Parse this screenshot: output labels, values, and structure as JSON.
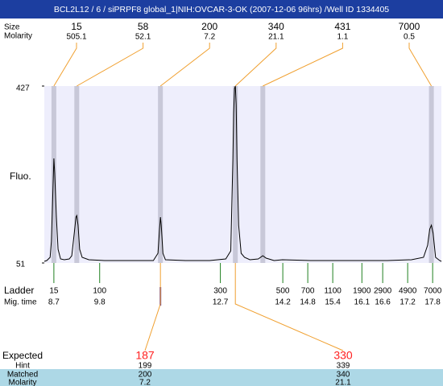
{
  "chart_data": {
    "type": "line",
    "title": "BCL2L12 / 6 / siPRPF8 global_1|NIH:OVCAR-3-OK (2007-12-06 96hrs) /Well ID 1334405",
    "y_label": "Fluo.",
    "color": "#000000",
    "xlim": [
      8.47,
      18.01
    ],
    "ylim": [
      51,
      427
    ],
    "yticks": [
      51,
      427
    ],
    "x": [
      8.47,
      8.53,
      8.61,
      8.64,
      8.68,
      8.7,
      8.72,
      8.76,
      8.8,
      8.86,
      8.95,
      9.07,
      9.13,
      9.19,
      9.23,
      9.25,
      9.28,
      9.32,
      9.38,
      9.54,
      9.92,
      10.5,
      11.09,
      11.2,
      11.24,
      11.26,
      11.28,
      11.32,
      11.38,
      11.86,
      12.44,
      12.83,
      12.95,
      13.0,
      13.02,
      13.04,
      13.06,
      13.08,
      13.1,
      13.14,
      13.2,
      13.28,
      13.41,
      13.61,
      13.72,
      13.8,
      13.99,
      14.19,
      14.87,
      15.54,
      16.71,
      17.29,
      17.58,
      17.68,
      17.73,
      17.77,
      17.81,
      17.87,
      17.97,
      18.01
    ],
    "values": [
      54.4,
      56.1,
      63.0,
      97.1,
      216.8,
      273.2,
      242.4,
      148.4,
      80.1,
      59.5,
      57.8,
      59.5,
      66.4,
      114.2,
      148.4,
      151.8,
      131.3,
      80.1,
      63.0,
      57.8,
      56.1,
      56.1,
      56.1,
      71.5,
      122.8,
      148.4,
      131.3,
      71.5,
      57.8,
      56.1,
      56.1,
      59.5,
      76.6,
      268.0,
      370.6,
      421.9,
      427,
      387.7,
      268.0,
      131.3,
      71.5,
      63.0,
      57.8,
      59.5,
      66.4,
      61.3,
      56.1,
      57.8,
      56.1,
      56.1,
      56.1,
      57.8,
      63.0,
      88.6,
      122.8,
      131.3,
      114.2,
      63.0,
      56.1,
      54.4
    ],
    "peaks": {
      "size_label": "Size",
      "molarity_label": "Molarity",
      "size": [
        15,
        58,
        200,
        340,
        431,
        7000
      ],
      "molarity": [
        505.1,
        52.1,
        7.2,
        21.1,
        1.1,
        0.5
      ],
      "time": [
        8.7,
        9.25,
        11.26,
        13.06,
        13.72,
        17.77
      ],
      "band_color": "#c8c8d8",
      "line_color": "#f0a030"
    },
    "ladder": {
      "label": "Ladder",
      "time_label": "Mig. time",
      "size": [
        15,
        100,
        300,
        500,
        700,
        1100,
        1900,
        2900,
        4900,
        7000
      ],
      "time": [
        8.7,
        9.8,
        12.7,
        14.2,
        14.8,
        15.4,
        16.1,
        16.6,
        17.2,
        17.8
      ],
      "color": "#208020"
    },
    "fragments": {
      "labels": [
        "Expected",
        "Hint",
        "Matched",
        "Molarity"
      ],
      "expected": [
        187,
        330
      ],
      "hint": [
        199,
        339
      ],
      "matched": [
        200,
        340
      ],
      "molarity": [
        7.2,
        21.1
      ],
      "expected_color": "#ff2020",
      "row_color": "#add8e6"
    }
  }
}
